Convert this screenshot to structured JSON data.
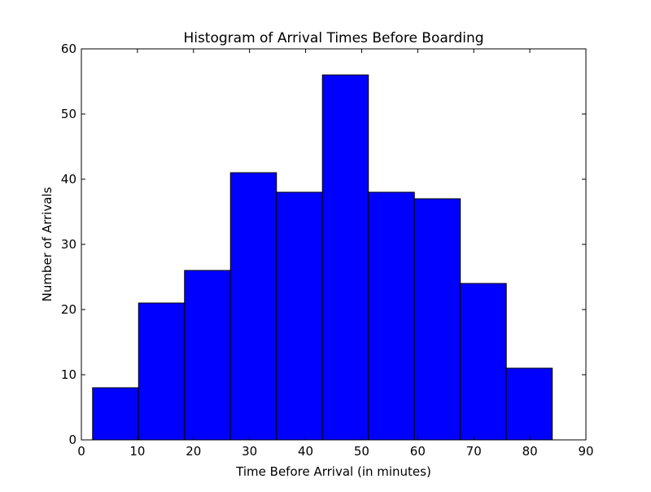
{
  "chart_data": {
    "type": "bar",
    "title": "Histogram of Arrival Times Before Boarding",
    "xlabel": "Time Before Arrival (in minutes)",
    "ylabel": "Number of Arrivals",
    "xlim": [
      0,
      90
    ],
    "ylim": [
      0,
      60
    ],
    "x_ticks": [
      0,
      10,
      20,
      30,
      40,
      50,
      60,
      70,
      80,
      90
    ],
    "y_ticks": [
      0,
      10,
      20,
      30,
      40,
      50,
      60
    ],
    "bin_edges": [
      2.0,
      10.2,
      18.4,
      26.6,
      34.8,
      43.0,
      51.2,
      59.4,
      67.6,
      75.8,
      84.0
    ],
    "values": [
      8,
      21,
      26,
      41,
      38,
      56,
      38,
      37,
      24,
      11
    ],
    "bar_color": "#0000ff",
    "edge_color": "#000000",
    "grid": false,
    "legend": "none"
  }
}
